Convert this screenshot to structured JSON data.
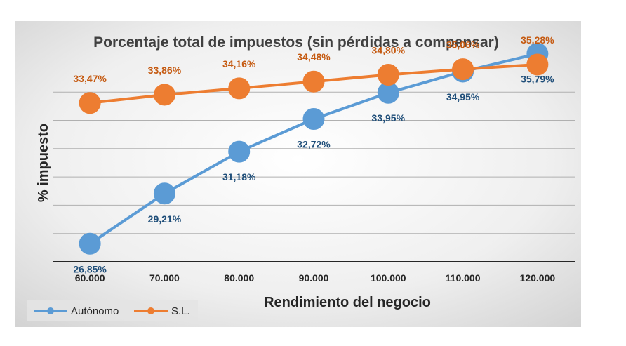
{
  "chart_data": {
    "type": "line",
    "title": "Porcentaje total de impuestos (sin pérdidas a compensar)",
    "xlabel": "Rendimiento del negocio",
    "ylabel": "% impuesto",
    "categories": [
      "60.000",
      "70.000",
      "80.000",
      "90.000",
      "100.000",
      "110.000",
      "120.000"
    ],
    "ylim": [
      26.0,
      36.6
    ],
    "grid": true,
    "legend": "bottom-left",
    "series": [
      {
        "name": "Autónomo",
        "color": "#5B9BD5",
        "label_color": "#1F4E79",
        "label_position": "below",
        "values": [
          26.85,
          29.21,
          31.18,
          32.72,
          33.95,
          34.95,
          35.79
        ],
        "labels": [
          "26,85%",
          "29,21%",
          "31,18%",
          "32,72%",
          "33,95%",
          "34,95%",
          "35,79%"
        ]
      },
      {
        "name": "S.L.",
        "color": "#ED7D31",
        "label_color": "#C55A11",
        "label_position": "above",
        "values": [
          33.47,
          33.86,
          34.16,
          34.48,
          34.8,
          35.06,
          35.28
        ],
        "labels": [
          "33,47%",
          "33,86%",
          "34,16%",
          "34,48%",
          "34,80%",
          "35,06%",
          "35,28%"
        ]
      }
    ]
  }
}
